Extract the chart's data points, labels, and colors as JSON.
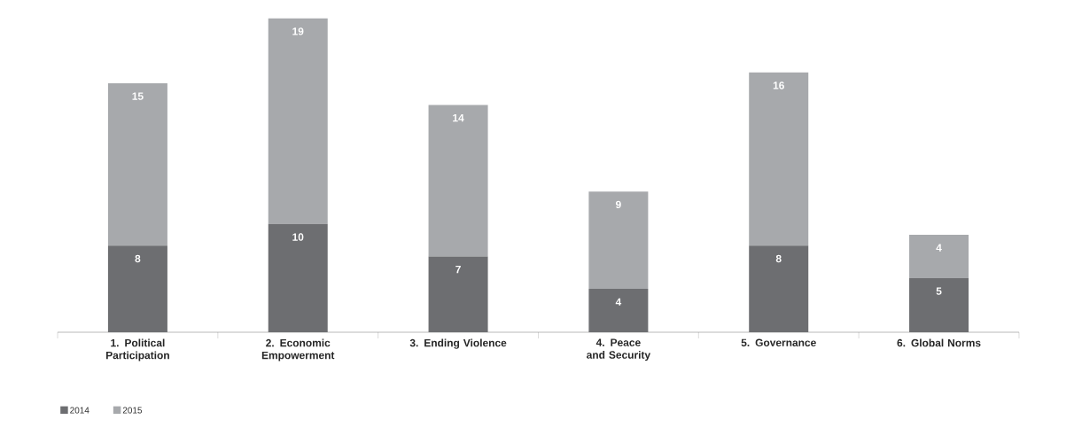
{
  "chart_data": {
    "type": "bar",
    "stacked": true,
    "data_labels": true,
    "legend": "bottom left",
    "categories": [
      "1. Political Participation",
      "2. Economic Empowerment",
      "3. Ending Violence",
      "4. Peace and Security",
      "5. Governance",
      "6. Global Norms"
    ],
    "series": [
      {
        "name": "2014",
        "color": "#6d6e71",
        "values": [
          8,
          10,
          7,
          4,
          8,
          5
        ]
      },
      {
        "name": "2015",
        "color": "#a7a9ac",
        "values": [
          15,
          19,
          14,
          9,
          16,
          4
        ]
      }
    ]
  }
}
